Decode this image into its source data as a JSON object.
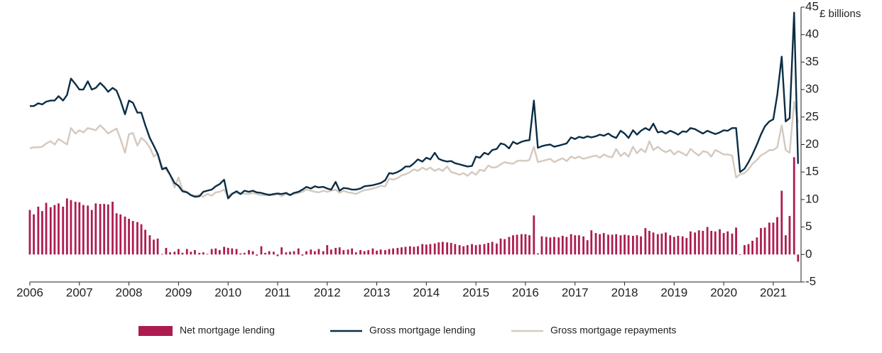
{
  "chart_data": {
    "type": "combo",
    "y_label": "£ billions",
    "x": [
      2006.0,
      2006.08,
      2006.17,
      2006.25,
      2006.33,
      2006.42,
      2006.5,
      2006.58,
      2006.67,
      2006.75,
      2006.83,
      2006.92,
      2007.0,
      2007.08,
      2007.17,
      2007.25,
      2007.33,
      2007.42,
      2007.5,
      2007.58,
      2007.67,
      2007.75,
      2007.83,
      2007.92,
      2008.0,
      2008.08,
      2008.17,
      2008.25,
      2008.33,
      2008.42,
      2008.5,
      2008.58,
      2008.67,
      2008.75,
      2008.83,
      2008.92,
      2009.0,
      2009.08,
      2009.17,
      2009.25,
      2009.33,
      2009.42,
      2009.5,
      2009.58,
      2009.67,
      2009.75,
      2009.83,
      2009.92,
      2010.0,
      2010.08,
      2010.17,
      2010.25,
      2010.33,
      2010.42,
      2010.5,
      2010.58,
      2010.67,
      2010.75,
      2010.83,
      2010.92,
      2011.0,
      2011.08,
      2011.17,
      2011.25,
      2011.33,
      2011.42,
      2011.5,
      2011.58,
      2011.67,
      2011.75,
      2011.83,
      2011.92,
      2012.0,
      2012.08,
      2012.17,
      2012.25,
      2012.33,
      2012.42,
      2012.5,
      2012.58,
      2012.67,
      2012.75,
      2012.83,
      2012.92,
      2013.0,
      2013.08,
      2013.17,
      2013.25,
      2013.33,
      2013.42,
      2013.5,
      2013.58,
      2013.67,
      2013.75,
      2013.83,
      2013.92,
      2014.0,
      2014.08,
      2014.17,
      2014.25,
      2014.33,
      2014.42,
      2014.5,
      2014.58,
      2014.67,
      2014.75,
      2014.83,
      2014.92,
      2015.0,
      2015.08,
      2015.17,
      2015.25,
      2015.33,
      2015.42,
      2015.5,
      2015.58,
      2015.67,
      2015.75,
      2015.83,
      2015.92,
      2016.0,
      2016.08,
      2016.17,
      2016.25,
      2016.33,
      2016.42,
      2016.5,
      2016.58,
      2016.67,
      2016.75,
      2016.83,
      2016.92,
      2017.0,
      2017.08,
      2017.17,
      2017.25,
      2017.33,
      2017.42,
      2017.5,
      2017.58,
      2017.67,
      2017.75,
      2017.83,
      2017.92,
      2018.0,
      2018.08,
      2018.17,
      2018.25,
      2018.33,
      2018.42,
      2018.5,
      2018.58,
      2018.67,
      2018.75,
      2018.83,
      2018.92,
      2019.0,
      2019.08,
      2019.17,
      2019.25,
      2019.33,
      2019.42,
      2019.5,
      2019.58,
      2019.67,
      2019.75,
      2019.83,
      2019.92,
      2020.0,
      2020.08,
      2020.17,
      2020.25,
      2020.33,
      2020.42,
      2020.5,
      2020.58,
      2020.67,
      2020.75,
      2020.83,
      2020.92,
      2021.0,
      2021.08,
      2021.17,
      2021.25,
      2021.33,
      2021.42,
      2021.5
    ],
    "series": [
      {
        "name": "Net mortgage lending",
        "type": "bar",
        "color": "#ad1c50",
        "values": [
          8.1,
          7.3,
          8.7,
          7.9,
          9.4,
          8.6,
          9.0,
          9.3,
          8.7,
          10.2,
          9.9,
          9.6,
          9.5,
          9.0,
          8.9,
          8.1,
          9.3,
          9.2,
          9.2,
          9.1,
          9.6,
          7.5,
          7.3,
          6.9,
          6.5,
          6.1,
          5.9,
          5.5,
          4.5,
          3.5,
          2.7,
          2.9,
          0.1,
          1.2,
          0.4,
          0.5,
          1.0,
          0.3,
          1.0,
          0.5,
          0.8,
          0.3,
          0.4,
          0.1,
          1.0,
          1.1,
          0.8,
          1.4,
          1.2,
          1.1,
          1.0,
          0.2,
          0.3,
          0.8,
          0.6,
          -0.2,
          1.5,
          0.3,
          0.6,
          0.5,
          -0.3,
          1.3,
          0.4,
          0.5,
          0.6,
          1.1,
          -0.2,
          0.6,
          0.9,
          0.6,
          1.0,
          0.6,
          1.7,
          0.9,
          1.2,
          1.3,
          0.8,
          0.9,
          1.1,
          0.4,
          0.8,
          0.6,
          0.8,
          1.1,
          0.7,
          0.9,
          0.8,
          1.0,
          1.1,
          1.2,
          1.3,
          1.4,
          1.5,
          1.4,
          1.5,
          1.9,
          1.8,
          1.9,
          2.0,
          2.2,
          2.3,
          2.2,
          2.1,
          1.9,
          1.7,
          1.5,
          1.7,
          1.9,
          1.7,
          1.8,
          1.9,
          2.1,
          2.3,
          2.0,
          2.9,
          2.8,
          3.2,
          3.5,
          3.6,
          3.7,
          3.7,
          3.5,
          7.1,
          0.2,
          3.3,
          3.2,
          3.1,
          3.2,
          3.1,
          3.4,
          3.2,
          3.7,
          3.5,
          3.5,
          3.3,
          2.6,
          4.4,
          3.9,
          3.7,
          3.9,
          3.6,
          3.6,
          3.7,
          3.5,
          3.6,
          3.5,
          3.4,
          3.5,
          3.3,
          4.8,
          4.3,
          4.0,
          3.7,
          3.8,
          4.0,
          3.5,
          3.2,
          3.4,
          3.3,
          3.0,
          4.2,
          4.0,
          4.4,
          4.3,
          5.0,
          4.3,
          4.2,
          4.6,
          3.9,
          4.2,
          3.8,
          4.9,
          -0.1,
          1.7,
          1.9,
          2.5,
          3.1,
          4.8,
          4.9,
          5.8,
          5.8,
          6.8,
          11.6,
          3.5,
          7.0,
          17.7,
          -1.3
        ]
      },
      {
        "name": "Gross mortgage lending",
        "type": "line",
        "color": "#0b2d45",
        "values": [
          27.0,
          27.0,
          27.5,
          27.3,
          27.8,
          28.0,
          28.0,
          28.8,
          28.0,
          29.0,
          32.0,
          31.0,
          30.0,
          30.0,
          31.5,
          30.0,
          30.3,
          31.2,
          30.5,
          29.6,
          30.3,
          29.8,
          28.0,
          25.5,
          28.0,
          27.6,
          25.8,
          25.8,
          23.5,
          21.2,
          19.8,
          18.3,
          15.5,
          15.8,
          14.5,
          13.0,
          12.5,
          11.5,
          11.3,
          10.8,
          10.5,
          10.6,
          11.4,
          11.6,
          11.8,
          12.4,
          12.8,
          13.6,
          10.2,
          11.0,
          11.5,
          11.0,
          11.6,
          11.4,
          11.6,
          11.3,
          11.2,
          11.0,
          10.8,
          11.0,
          11.1,
          11.0,
          11.2,
          10.8,
          11.2,
          11.4,
          11.8,
          12.3,
          12.0,
          12.4,
          12.2,
          12.3,
          12.0,
          11.8,
          13.2,
          11.6,
          12.1,
          12.0,
          11.8,
          11.8,
          12.0,
          12.4,
          12.5,
          12.6,
          12.8,
          13.0,
          13.5,
          14.8,
          14.7,
          15.0,
          15.4,
          16.0,
          16.0,
          16.6,
          17.3,
          16.9,
          17.6,
          17.3,
          18.5,
          17.4,
          17.1,
          16.9,
          17.0,
          16.6,
          16.4,
          16.2,
          16.0,
          16.1,
          17.8,
          17.6,
          18.5,
          18.2,
          19.0,
          19.2,
          20.2,
          20.0,
          19.3,
          20.5,
          20.1,
          20.5,
          20.7,
          20.8,
          28.0,
          19.4,
          19.7,
          19.9,
          20.0,
          19.6,
          19.8,
          20.0,
          20.2,
          21.3,
          21.0,
          21.4,
          21.2,
          21.5,
          21.3,
          21.5,
          21.8,
          21.6,
          22.0,
          21.5,
          21.2,
          22.5,
          22.0,
          21.2,
          22.6,
          21.8,
          22.5,
          23.0,
          22.6,
          23.8,
          22.2,
          22.4,
          22.0,
          22.5,
          22.2,
          21.8,
          22.4,
          22.3,
          23.0,
          22.8,
          22.4,
          22.0,
          22.5,
          22.2,
          21.9,
          22.2,
          22.6,
          22.5,
          23.0,
          23.0,
          15.0,
          15.6,
          16.8,
          18.2,
          20.0,
          21.8,
          23.3,
          24.2,
          24.6,
          29.0,
          36.0,
          24.2,
          24.8,
          44.0,
          16.5
        ]
      },
      {
        "name": "Gross mortgage repayments",
        "type": "line",
        "color": "#d4c9bf",
        "values": [
          19.3,
          19.5,
          19.5,
          19.6,
          20.2,
          20.6,
          20.0,
          21.0,
          20.5,
          20.0,
          23.0,
          22.0,
          22.6,
          22.2,
          23.0,
          22.8,
          22.6,
          23.5,
          22.8,
          22.0,
          22.5,
          22.9,
          21.0,
          18.5,
          21.9,
          22.1,
          19.8,
          21.2,
          20.6,
          19.5,
          17.8,
          18.4,
          16.0,
          15.4,
          14.5,
          12.2,
          14.0,
          11.8,
          11.4,
          10.8,
          10.7,
          10.8,
          10.5,
          11.0,
          10.7,
          11.3,
          11.4,
          11.8,
          10.6,
          11.2,
          11.2,
          11.0,
          11.1,
          11.0,
          11.2,
          11.0,
          10.8,
          10.8,
          11.0,
          10.8,
          11.0,
          10.6,
          11.0,
          10.8,
          11.0,
          11.2,
          11.4,
          11.8,
          11.6,
          11.4,
          11.3,
          11.6,
          11.4,
          11.6,
          11.8,
          11.2,
          11.6,
          11.3,
          11.2,
          11.0,
          11.4,
          11.7,
          11.8,
          12.0,
          12.2,
          12.5,
          12.4,
          13.8,
          13.6,
          13.9,
          14.4,
          14.6,
          15.0,
          15.5,
          15.2,
          15.8,
          15.4,
          15.8,
          15.2,
          15.6,
          15.2,
          16.0,
          15.0,
          14.8,
          14.5,
          14.8,
          14.3,
          15.0,
          14.5,
          15.4,
          15.2,
          16.2,
          15.8,
          15.9,
          16.4,
          16.8,
          16.6,
          16.5,
          17.0,
          17.1,
          17.0,
          17.2,
          19.6,
          16.8,
          17.0,
          17.2,
          17.4,
          16.8,
          17.2,
          17.5,
          17.0,
          17.8,
          17.5,
          17.8,
          17.4,
          17.6,
          17.8,
          18.0,
          17.6,
          18.2,
          17.8,
          17.7,
          19.2,
          17.9,
          18.5,
          17.8,
          19.6,
          18.4,
          19.2,
          18.6,
          20.6,
          19.0,
          19.6,
          19.0,
          18.6,
          19.0,
          18.2,
          18.8,
          18.4,
          18.0,
          19.2,
          18.5,
          18.0,
          18.8,
          18.6,
          17.8,
          19.0,
          18.6,
          18.2,
          18.2,
          18.0,
          14.0,
          14.6,
          14.8,
          15.5,
          16.5,
          17.2,
          18.0,
          18.4,
          19.0,
          19.0,
          19.5,
          23.5,
          19.0,
          18.5,
          27.8,
          24.0
        ]
      }
    ],
    "xlim": [
      2006,
      2021.56
    ],
    "xticks": [
      2006,
      2007,
      2008,
      2009,
      2010,
      2011,
      2012,
      2013,
      2014,
      2015,
      2016,
      2017,
      2018,
      2019,
      2020,
      2021
    ],
    "ylim": [
      -5,
      45
    ],
    "yticks": [
      -5,
      0,
      5,
      10,
      15,
      20,
      25,
      30,
      35,
      40,
      45
    ],
    "legend": "bottom"
  }
}
